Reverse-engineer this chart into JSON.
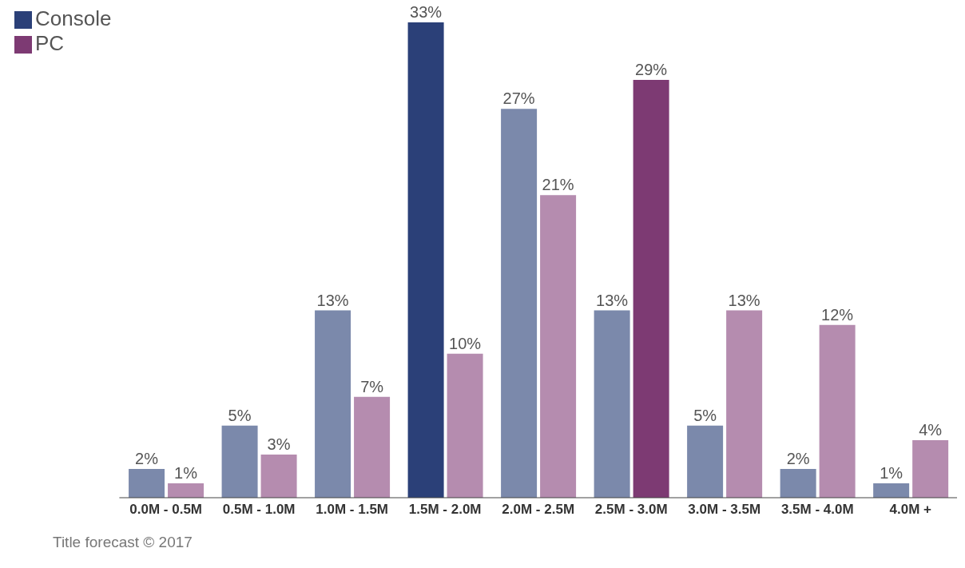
{
  "chart_data": {
    "type": "bar",
    "categories": [
      "0.0M - 0.5M",
      "0.5M - 1.0M",
      "1.0M - 1.5M",
      "1.5M - 2.0M",
      "2.0M - 2.5M",
      "2.5M - 3.0M",
      "3.0M - 3.5M",
      "3.5M - 4.0M",
      "4.0M +"
    ],
    "series": [
      {
        "name": "Console",
        "color": "#2b4078",
        "colors": [
          "#7b89ab",
          "#7b89ab",
          "#7b89ab",
          "#2b4078",
          "#7b89ab",
          "#7b89ab",
          "#7b89ab",
          "#7b89ab",
          "#7b89ab"
        ],
        "values": [
          2,
          5,
          13,
          33,
          27,
          13,
          5,
          2,
          1
        ],
        "value_labels": [
          "2%",
          "5%",
          "13%",
          "33%",
          "27%",
          "13%",
          "5%",
          "2%",
          "1%"
        ]
      },
      {
        "name": "PC",
        "color": "#7d3a73",
        "colors": [
          "#b58caf",
          "#b58caf",
          "#b58caf",
          "#b58caf",
          "#b58caf",
          "#7d3a73",
          "#b58caf",
          "#b58caf",
          "#b58caf"
        ],
        "values": [
          1,
          3,
          7,
          10,
          21,
          29,
          13,
          12,
          4
        ],
        "value_labels": [
          "1%",
          "3%",
          "7%",
          "10%",
          "21%",
          "29%",
          "13%",
          "12%",
          "4%"
        ]
      }
    ],
    "legend": "top left",
    "grid": false,
    "annotations": [
      "Title forecast © 2017"
    ]
  }
}
